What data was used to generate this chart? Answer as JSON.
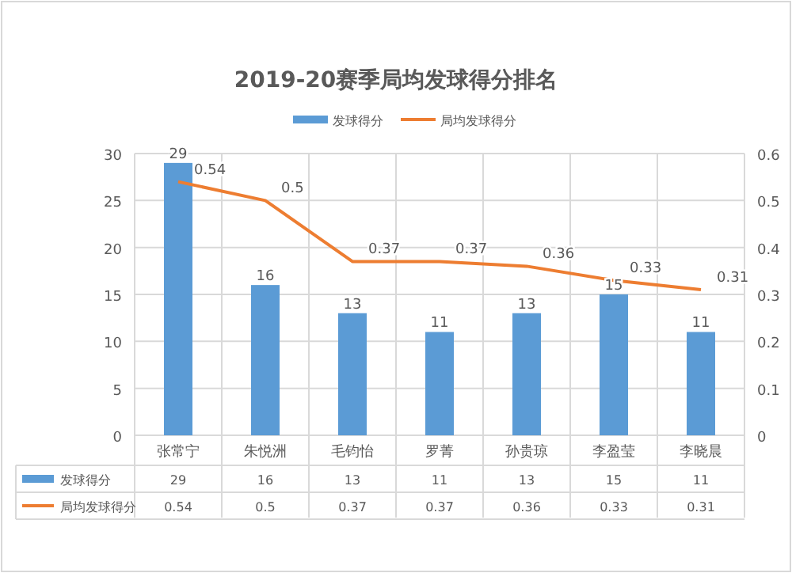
{
  "chart_data": {
    "type": "bar",
    "title": "2019-20赛季局均发球得分排名",
    "categories": [
      "张常宁",
      "朱悦洲",
      "毛钧怡",
      "罗菁",
      "孙贵琼",
      "李盈莹",
      "李晓晨"
    ],
    "series": [
      {
        "name": "发球得分",
        "color": "#5b9bd5",
        "values": [
          29,
          16,
          13,
          11,
          13,
          15,
          11
        ],
        "value_labels": [
          "29",
          "16",
          "13",
          "11",
          "13",
          "15",
          "11"
        ]
      },
      {
        "name": "局均发球得分",
        "type": "line",
        "axis": "y2",
        "color": "#ed7d31",
        "values": [
          0.54,
          0.5,
          0.37,
          0.37,
          0.36,
          0.33,
          0.31
        ],
        "value_labels": [
          "0.54",
          "0.5",
          "0.37",
          "0.37",
          "0.36",
          "0.33",
          "0.31"
        ]
      }
    ],
    "ylim": [
      0,
      30
    ],
    "yticks": [
      0,
      5,
      10,
      15,
      20,
      25,
      30
    ],
    "y2lim": [
      0,
      0.6
    ],
    "y2ticks": [
      0,
      0.1,
      0.2,
      0.3,
      0.4,
      0.5,
      0.6
    ],
    "grid": true,
    "legend": "top"
  }
}
